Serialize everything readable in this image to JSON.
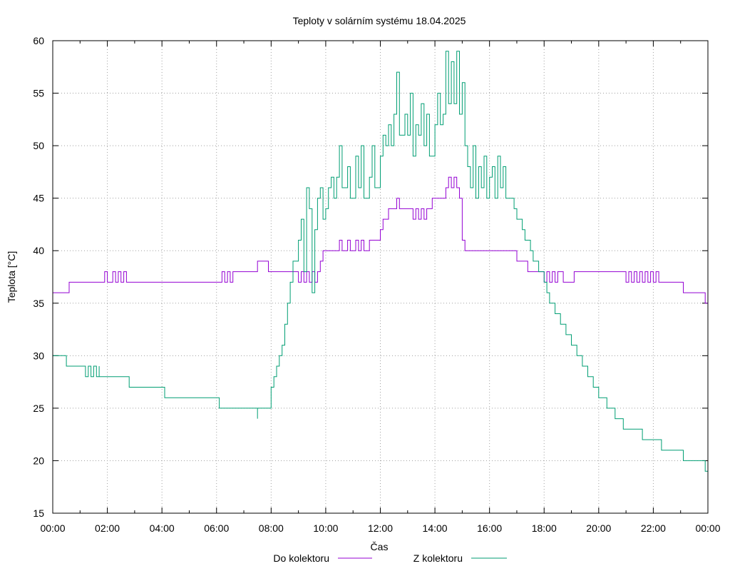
{
  "chart_data": {
    "type": "line",
    "title": "Teploty v solárním systému 18.04.2025",
    "xlabel": "Čas",
    "ylabel": "Teplota [°C]",
    "xlim": [
      0,
      24
    ],
    "ylim": [
      15,
      60
    ],
    "grid": true,
    "legend_position": "bottom",
    "x_tick_labels": [
      "00:00",
      "02:00",
      "04:00",
      "06:00",
      "08:00",
      "10:00",
      "12:00",
      "14:00",
      "16:00",
      "18:00",
      "20:00",
      "22:00",
      "00:00"
    ],
    "y_tick_labels": [
      "15",
      "20",
      "25",
      "30",
      "35",
      "40",
      "45",
      "50",
      "55",
      "60"
    ],
    "x_unit": "hours since 00:00",
    "series": [
      {
        "name": "Do kolektoru",
        "color": "#9400d3",
        "points": [
          [
            0,
            36
          ],
          [
            0.6,
            36
          ],
          [
            0.6,
            37
          ],
          [
            1.9,
            37
          ],
          [
            1.9,
            38
          ],
          [
            2.0,
            37
          ],
          [
            2.2,
            38
          ],
          [
            2.3,
            37
          ],
          [
            2.4,
            38
          ],
          [
            2.5,
            37
          ],
          [
            2.6,
            38
          ],
          [
            2.7,
            37
          ],
          [
            6.2,
            37
          ],
          [
            6.2,
            38
          ],
          [
            6.3,
            37
          ],
          [
            6.4,
            38
          ],
          [
            6.5,
            37
          ],
          [
            6.6,
            38
          ],
          [
            7.4,
            38
          ],
          [
            7.5,
            39
          ],
          [
            7.9,
            39
          ],
          [
            7.9,
            38
          ],
          [
            8.9,
            38
          ],
          [
            9.0,
            37
          ],
          [
            9.1,
            38
          ],
          [
            9.2,
            37
          ],
          [
            9.3,
            38
          ],
          [
            9.4,
            37
          ],
          [
            9.5,
            38
          ],
          [
            9.6,
            37
          ],
          [
            9.7,
            38
          ],
          [
            9.8,
            39
          ],
          [
            9.9,
            40
          ],
          [
            10.5,
            40
          ],
          [
            10.5,
            41
          ],
          [
            10.6,
            40
          ],
          [
            10.8,
            41
          ],
          [
            10.9,
            40
          ],
          [
            11.1,
            41
          ],
          [
            11.2,
            40
          ],
          [
            11.3,
            41
          ],
          [
            11.4,
            40
          ],
          [
            11.6,
            41
          ],
          [
            12.0,
            41
          ],
          [
            12.0,
            42
          ],
          [
            12.1,
            42
          ],
          [
            12.1,
            43
          ],
          [
            12.3,
            43
          ],
          [
            12.3,
            44
          ],
          [
            12.5,
            44
          ],
          [
            12.6,
            45
          ],
          [
            12.7,
            44
          ],
          [
            13.2,
            44
          ],
          [
            13.2,
            43
          ],
          [
            13.3,
            44
          ],
          [
            13.4,
            43
          ],
          [
            13.5,
            44
          ],
          [
            13.6,
            43
          ],
          [
            13.7,
            44
          ],
          [
            13.9,
            44
          ],
          [
            13.9,
            45
          ],
          [
            14.3,
            45
          ],
          [
            14.4,
            46
          ],
          [
            14.5,
            47
          ],
          [
            14.6,
            46
          ],
          [
            14.7,
            47
          ],
          [
            14.8,
            46
          ],
          [
            14.9,
            45
          ],
          [
            15.0,
            43
          ],
          [
            15.0,
            41
          ],
          [
            15.1,
            40
          ],
          [
            16.7,
            40
          ],
          [
            16.8,
            40
          ],
          [
            17.0,
            39
          ],
          [
            17.2,
            39
          ],
          [
            17.4,
            38
          ],
          [
            17.9,
            38
          ],
          [
            18.0,
            37
          ],
          [
            18.1,
            38
          ],
          [
            18.2,
            37
          ],
          [
            18.3,
            38
          ],
          [
            18.4,
            37
          ],
          [
            18.5,
            38
          ],
          [
            18.7,
            37
          ],
          [
            19.0,
            37
          ],
          [
            19.1,
            38
          ],
          [
            20.9,
            38
          ],
          [
            21.0,
            37
          ],
          [
            21.1,
            38
          ],
          [
            21.2,
            37
          ],
          [
            21.3,
            38
          ],
          [
            21.4,
            37
          ],
          [
            21.5,
            38
          ],
          [
            21.6,
            37
          ],
          [
            21.7,
            38
          ],
          [
            21.8,
            37
          ],
          [
            21.9,
            38
          ],
          [
            22.0,
            37
          ],
          [
            22.1,
            38
          ],
          [
            22.2,
            38
          ],
          [
            22.2,
            37
          ],
          [
            23.1,
            37
          ],
          [
            23.1,
            36
          ],
          [
            23.9,
            36
          ],
          [
            23.9,
            35
          ],
          [
            24,
            35
          ]
        ]
      },
      {
        "name": "Z kolektoru",
        "color": "#009e73",
        "points": [
          [
            0,
            30
          ],
          [
            0.5,
            30
          ],
          [
            0.5,
            29
          ],
          [
            1.2,
            29
          ],
          [
            1.2,
            28
          ],
          [
            1.3,
            29
          ],
          [
            1.4,
            28
          ],
          [
            1.5,
            29
          ],
          [
            1.6,
            28
          ],
          [
            1.7,
            29
          ],
          [
            1.7,
            28
          ],
          [
            2.8,
            28
          ],
          [
            2.8,
            27
          ],
          [
            4.1,
            27
          ],
          [
            4.1,
            26
          ],
          [
            6.1,
            26
          ],
          [
            6.1,
            25
          ],
          [
            7.4,
            25
          ],
          [
            7.5,
            24
          ],
          [
            7.5,
            25
          ],
          [
            7.9,
            25
          ],
          [
            8.0,
            27
          ],
          [
            8.1,
            28
          ],
          [
            8.2,
            29
          ],
          [
            8.3,
            30
          ],
          [
            8.4,
            31
          ],
          [
            8.5,
            33
          ],
          [
            8.6,
            35
          ],
          [
            8.7,
            37
          ],
          [
            8.8,
            39
          ],
          [
            9.0,
            41
          ],
          [
            9.1,
            43
          ],
          [
            9.2,
            38
          ],
          [
            9.3,
            46
          ],
          [
            9.4,
            44
          ],
          [
            9.5,
            36
          ],
          [
            9.6,
            42
          ],
          [
            9.7,
            45
          ],
          [
            9.8,
            46
          ],
          [
            9.9,
            43
          ],
          [
            10.0,
            44
          ],
          [
            10.1,
            46
          ],
          [
            10.2,
            47
          ],
          [
            10.3,
            45
          ],
          [
            10.4,
            47
          ],
          [
            10.5,
            50
          ],
          [
            10.6,
            46
          ],
          [
            10.8,
            48
          ],
          [
            10.9,
            45
          ],
          [
            11.1,
            49
          ],
          [
            11.2,
            46
          ],
          [
            11.3,
            50
          ],
          [
            11.4,
            45
          ],
          [
            11.6,
            47
          ],
          [
            11.7,
            50
          ],
          [
            11.8,
            46
          ],
          [
            12.0,
            49
          ],
          [
            12.1,
            51
          ],
          [
            12.2,
            50
          ],
          [
            12.3,
            52
          ],
          [
            12.4,
            50
          ],
          [
            12.5,
            53
          ],
          [
            12.6,
            57
          ],
          [
            12.7,
            51
          ],
          [
            12.9,
            53
          ],
          [
            13.0,
            51
          ],
          [
            13.1,
            55
          ],
          [
            13.2,
            49
          ],
          [
            13.3,
            52
          ],
          [
            13.4,
            51
          ],
          [
            13.5,
            54
          ],
          [
            13.6,
            50
          ],
          [
            13.7,
            53
          ],
          [
            13.8,
            49
          ],
          [
            14.0,
            52
          ],
          [
            14.1,
            55
          ],
          [
            14.2,
            52
          ],
          [
            14.3,
            53
          ],
          [
            14.4,
            59
          ],
          [
            14.5,
            54
          ],
          [
            14.6,
            58
          ],
          [
            14.7,
            54
          ],
          [
            14.8,
            59
          ],
          [
            14.9,
            53
          ],
          [
            15.0,
            56
          ],
          [
            15.1,
            50
          ],
          [
            15.2,
            48
          ],
          [
            15.3,
            46
          ],
          [
            15.4,
            50
          ],
          [
            15.5,
            45
          ],
          [
            15.6,
            48
          ],
          [
            15.7,
            46
          ],
          [
            15.8,
            49
          ],
          [
            15.9,
            45
          ],
          [
            16.0,
            47
          ],
          [
            16.1,
            48
          ],
          [
            16.2,
            45
          ],
          [
            16.3,
            49
          ],
          [
            16.4,
            46
          ],
          [
            16.5,
            48
          ],
          [
            16.6,
            45
          ],
          [
            16.8,
            45
          ],
          [
            16.9,
            44
          ],
          [
            17.0,
            43
          ],
          [
            17.2,
            42
          ],
          [
            17.3,
            41
          ],
          [
            17.5,
            40
          ],
          [
            17.6,
            39
          ],
          [
            17.8,
            38
          ],
          [
            18.0,
            37
          ],
          [
            18.1,
            36
          ],
          [
            18.2,
            35
          ],
          [
            18.4,
            34
          ],
          [
            18.6,
            33
          ],
          [
            18.8,
            32
          ],
          [
            19.0,
            31
          ],
          [
            19.2,
            30
          ],
          [
            19.4,
            29
          ],
          [
            19.6,
            28
          ],
          [
            19.8,
            27
          ],
          [
            20.0,
            26
          ],
          [
            20.3,
            25
          ],
          [
            20.6,
            24
          ],
          [
            20.9,
            23
          ],
          [
            21.3,
            23
          ],
          [
            21.6,
            22
          ],
          [
            22.1,
            22
          ],
          [
            22.3,
            21
          ],
          [
            23.0,
            21
          ],
          [
            23.1,
            20
          ],
          [
            23.8,
            20
          ],
          [
            23.9,
            19
          ],
          [
            24,
            19
          ]
        ]
      }
    ]
  }
}
